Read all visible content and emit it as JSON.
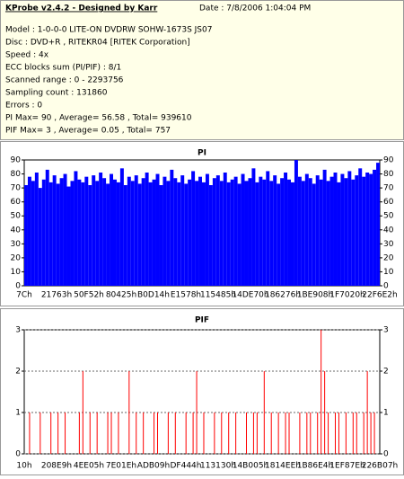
{
  "header": {
    "title": "KProbe v2.4.2 - Designed by Karr",
    "date": "Date : 7/8/2006 1:04:04 PM",
    "lines": [
      "Model : 1-0-0-0 LITE-ON DVDRW SOHW-1673S JS07",
      "Disc : DVD+R , RITEKR04 [RITEK Corporation]",
      "Speed : 4x",
      "ECC blocks sum (PI/PIF) : 8/1",
      "Scanned range : 0 - 2293756",
      "Sampling count : 131860",
      "Errors : 0",
      "PI Max= 90 , Average= 56.58 , Total= 939610",
      "PIF Max= 3 , Average= 0.05 , Total= 757"
    ]
  },
  "chart_data": [
    {
      "type": "bar",
      "title": "PI",
      "color": "#0000ff",
      "ylim": [
        0,
        90
      ],
      "yticks": [
        0,
        10,
        20,
        30,
        40,
        50,
        60,
        70,
        80,
        90
      ],
      "grid": false,
      "xlabels": [
        "7Ch",
        "21763h",
        "50F52h",
        "80425h",
        "B0D14h",
        "E1578h",
        "115485h",
        "14DE70h",
        "186276h",
        "1BE908h",
        "1F7020h",
        "22F6E2h"
      ],
      "values": [
        72,
        78,
        75,
        81,
        70,
        76,
        83,
        74,
        79,
        73,
        77,
        80,
        71,
        75,
        82,
        76,
        74,
        78,
        72,
        79,
        75,
        81,
        77,
        73,
        80,
        76,
        74,
        84,
        72,
        78,
        75,
        79,
        73,
        77,
        81,
        74,
        76,
        80,
        72,
        78,
        75,
        83,
        77,
        74,
        79,
        73,
        76,
        82,
        75,
        78,
        74,
        80,
        72,
        77,
        79,
        75,
        81,
        74,
        76,
        78,
        73,
        80,
        75,
        77,
        84,
        74,
        78,
        76,
        82,
        75,
        79,
        73,
        77,
        81,
        76,
        74,
        90,
        78,
        75,
        80,
        77,
        73,
        79,
        76,
        83,
        75,
        78,
        81,
        74,
        80,
        77,
        82,
        76,
        79,
        84,
        78,
        81,
        80,
        83,
        88
      ]
    },
    {
      "type": "bar",
      "title": "PIF",
      "color": "#ff0000",
      "ylim": [
        0,
        3
      ],
      "yticks": [
        0,
        1,
        2,
        3
      ],
      "grid": true,
      "xlabels": [
        "10h",
        "208E9h",
        "4EE05h",
        "7E01Eh",
        "ADB09h",
        "DF444h",
        "113130h",
        "14B005h",
        "1814EEh",
        "1B86E4h",
        "1EF87Eh",
        "226B07h"
      ],
      "values": [
        0,
        1,
        0,
        0,
        1,
        0,
        0,
        1,
        0,
        1,
        0,
        1,
        0,
        0,
        0,
        1,
        2,
        0,
        1,
        0,
        1,
        0,
        0,
        1,
        1,
        0,
        1,
        0,
        0,
        2,
        0,
        1,
        0,
        1,
        0,
        0,
        1,
        1,
        0,
        0,
        1,
        0,
        1,
        0,
        0,
        1,
        0,
        1,
        2,
        0,
        1,
        0,
        0,
        1,
        0,
        1,
        0,
        1,
        0,
        1,
        0,
        0,
        1,
        0,
        1,
        1,
        0,
        2,
        0,
        1,
        0,
        1,
        0,
        1,
        1,
        0,
        0,
        1,
        0,
        1,
        1,
        0,
        1,
        3,
        2,
        1,
        0,
        1,
        1,
        0,
        1,
        0,
        1,
        1,
        0,
        1,
        2,
        1,
        1,
        0
      ]
    }
  ]
}
